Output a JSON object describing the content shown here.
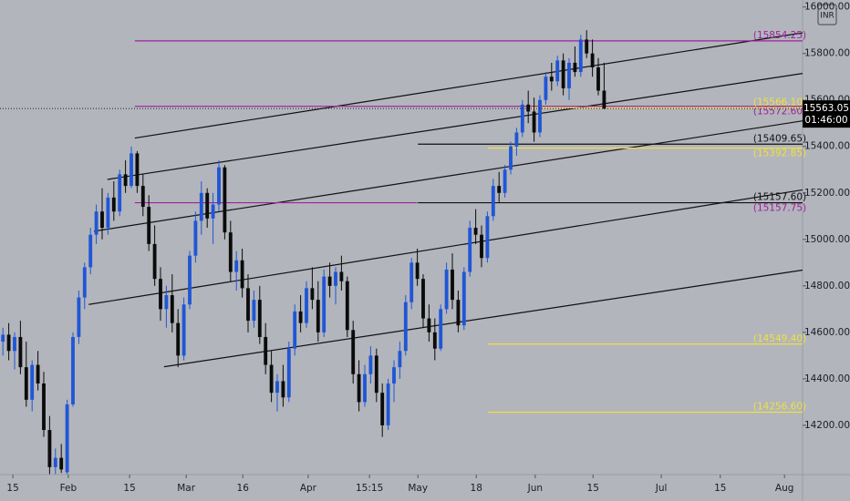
{
  "chart_data": {
    "type": "candlestick",
    "currency": "INR",
    "up_color": "#1f56d6",
    "down_color": "#0b0b0b",
    "ohlc": [
      [
        14560,
        14620,
        14500,
        14590
      ],
      [
        14590,
        14640,
        14480,
        14520
      ],
      [
        14520,
        14600,
        14440,
        14580
      ],
      [
        14580,
        14650,
        14420,
        14450
      ],
      [
        14450,
        14560,
        14280,
        14310
      ],
      [
        14310,
        14480,
        14260,
        14460
      ],
      [
        14460,
        14520,
        14350,
        14380
      ],
      [
        14380,
        14430,
        14150,
        14180
      ],
      [
        14180,
        14240,
        13990,
        14020
      ],
      [
        14020,
        14100,
        13990,
        14060
      ],
      [
        14060,
        14120,
        13995,
        14010
      ],
      [
        13998,
        14310,
        13990,
        14290
      ],
      [
        14290,
        14600,
        14280,
        14580
      ],
      [
        14580,
        14780,
        14550,
        14750
      ],
      [
        14750,
        14900,
        14700,
        14880
      ],
      [
        14880,
        15050,
        14850,
        15020
      ],
      [
        15020,
        15150,
        14980,
        15120
      ],
      [
        15120,
        15220,
        15000,
        15050
      ],
      [
        15050,
        15200,
        15020,
        15180
      ],
      [
        15180,
        15250,
        15080,
        15120
      ],
      [
        15120,
        15300,
        15100,
        15280
      ],
      [
        15280,
        15340,
        15200,
        15230
      ],
      [
        15230,
        15400,
        15220,
        15370
      ],
      [
        15370,
        15380,
        15200,
        15230
      ],
      [
        15230,
        15280,
        15100,
        15140
      ],
      [
        15140,
        15190,
        14950,
        14980
      ],
      [
        14980,
        15060,
        14800,
        14830
      ],
      [
        14830,
        14880,
        14650,
        14700
      ],
      [
        14700,
        14800,
        14620,
        14760
      ],
      [
        14760,
        14850,
        14600,
        14640
      ],
      [
        14640,
        14700,
        14450,
        14500
      ],
      [
        14500,
        14750,
        14480,
        14720
      ],
      [
        14720,
        14950,
        14700,
        14930
      ],
      [
        14930,
        15120,
        14900,
        15080
      ],
      [
        15080,
        15250,
        15020,
        15200
      ],
      [
        15200,
        15220,
        15050,
        15090
      ],
      [
        15090,
        15200,
        14980,
        15150
      ],
      [
        15150,
        15340,
        15120,
        15310
      ],
      [
        15310,
        15320,
        15000,
        15030
      ],
      [
        15030,
        15080,
        14820,
        14860
      ],
      [
        14860,
        14950,
        14780,
        14910
      ],
      [
        14910,
        14960,
        14750,
        14790
      ],
      [
        14790,
        14850,
        14600,
        14650
      ],
      [
        14650,
        14780,
        14620,
        14740
      ],
      [
        14740,
        14800,
        14550,
        14580
      ],
      [
        14580,
        14640,
        14420,
        14460
      ],
      [
        14460,
        14520,
        14300,
        14340
      ],
      [
        14340,
        14420,
        14260,
        14390
      ],
      [
        14390,
        14460,
        14280,
        14320
      ],
      [
        14320,
        14560,
        14300,
        14530
      ],
      [
        14530,
        14720,
        14500,
        14690
      ],
      [
        14690,
        14760,
        14600,
        14640
      ],
      [
        14640,
        14820,
        14620,
        14790
      ],
      [
        14790,
        14880,
        14700,
        14740
      ],
      [
        14740,
        14820,
        14560,
        14600
      ],
      [
        14600,
        14870,
        14580,
        14840
      ],
      [
        14840,
        14900,
        14750,
        14800
      ],
      [
        14800,
        14880,
        14720,
        14860
      ],
      [
        14860,
        14930,
        14780,
        14820
      ],
      [
        14820,
        14840,
        14580,
        14610
      ],
      [
        14610,
        14650,
        14380,
        14420
      ],
      [
        14420,
        14480,
        14260,
        14300
      ],
      [
        14300,
        14460,
        14280,
        14420
      ],
      [
        14420,
        14540,
        14380,
        14500
      ],
      [
        14500,
        14530,
        14300,
        14340
      ],
      [
        14340,
        14380,
        14150,
        14200
      ],
      [
        14200,
        14400,
        14180,
        14380
      ],
      [
        14380,
        14480,
        14300,
        14450
      ],
      [
        14450,
        14560,
        14400,
        14520
      ],
      [
        14520,
        14760,
        14500,
        14730
      ],
      [
        14730,
        14920,
        14700,
        14900
      ],
      [
        14900,
        14960,
        14800,
        14830
      ],
      [
        14830,
        14850,
        14620,
        14660
      ],
      [
        14660,
        14720,
        14560,
        14600
      ],
      [
        14600,
        14660,
        14480,
        14530
      ],
      [
        14530,
        14720,
        14520,
        14700
      ],
      [
        14700,
        14900,
        14680,
        14870
      ],
      [
        14870,
        14940,
        14700,
        14740
      ],
      [
        14740,
        14780,
        14600,
        14630
      ],
      [
        14630,
        14880,
        14610,
        14860
      ],
      [
        14860,
        15080,
        14840,
        15050
      ],
      [
        15050,
        15130,
        14980,
        15020
      ],
      [
        15020,
        15060,
        14880,
        14920
      ],
      [
        14920,
        15120,
        14900,
        15100
      ],
      [
        15100,
        15260,
        15080,
        15230
      ],
      [
        15230,
        15290,
        15160,
        15200
      ],
      [
        15200,
        15320,
        15180,
        15300
      ],
      [
        15300,
        15420,
        15280,
        15400
      ],
      [
        15400,
        15480,
        15360,
        15460
      ],
      [
        15460,
        15600,
        15440,
        15580
      ],
      [
        15580,
        15640,
        15500,
        15550
      ],
      [
        15550,
        15610,
        15420,
        15460
      ],
      [
        15460,
        15620,
        15440,
        15600
      ],
      [
        15600,
        15720,
        15580,
        15700
      ],
      [
        15700,
        15760,
        15640,
        15680
      ],
      [
        15680,
        15790,
        15660,
        15770
      ],
      [
        15770,
        15800,
        15620,
        15650
      ],
      [
        15650,
        15780,
        15600,
        15760
      ],
      [
        15760,
        15830,
        15700,
        15720
      ],
      [
        15720,
        15880,
        15700,
        15860
      ],
      [
        15860,
        15900,
        15780,
        15800
      ],
      [
        15800,
        15860,
        15700,
        15740
      ],
      [
        15740,
        15780,
        15620,
        15640
      ],
      [
        15640,
        15760,
        15560,
        15563.05
      ]
    ],
    "xlim": [
      -0.5,
      137
    ],
    "xticks": [
      {
        "value": 1.7,
        "label": "15"
      },
      {
        "value": 11.2,
        "label": "Feb"
      },
      {
        "value": 21.7,
        "label": "15"
      },
      {
        "value": 31.4,
        "label": "Mar"
      },
      {
        "value": 41.1,
        "label": "16"
      },
      {
        "value": 52.3,
        "label": "Apr"
      },
      {
        "value": 62.8,
        "label": "15:15"
      },
      {
        "value": 71.1,
        "label": "May"
      },
      {
        "value": 81.1,
        "label": "18"
      },
      {
        "value": 91.2,
        "label": "Jun"
      },
      {
        "value": 101.1,
        "label": "15"
      },
      {
        "value": 112.8,
        "label": "Jul"
      },
      {
        "value": 122.9,
        "label": "15"
      },
      {
        "value": 133.9,
        "label": "Aug"
      }
    ],
    "ylim": [
      13988,
      16030
    ],
    "yticks": [
      {
        "value": 14200,
        "label": "14200.00"
      },
      {
        "value": 14400,
        "label": "14400.00"
      },
      {
        "value": 14600,
        "label": "14600.00"
      },
      {
        "value": 14800,
        "label": "14800.00"
      },
      {
        "value": 15000,
        "label": "15000.00"
      },
      {
        "value": 15200,
        "label": "15200.00"
      },
      {
        "value": 15400,
        "label": "15400.00"
      },
      {
        "value": 15600,
        "label": "15600.00"
      },
      {
        "value": 15800,
        "label": "15800.00"
      },
      {
        "value": 16000,
        "label": "16000.00"
      }
    ],
    "levels": [
      {
        "value": 15854.25,
        "label": "(15854.25)",
        "color": "#a020a0",
        "start": 22.6
      },
      {
        "value": 15572.6,
        "label": "(15572.60)",
        "color": "#a020a0",
        "start": 22.6
      },
      {
        "value": 15157.75,
        "label": "(15157.75)",
        "color": "#a020a0",
        "start": 22.6,
        "end": 71
      },
      {
        "value": 15566.1,
        "label": "(15566.10)",
        "color": "#f0e040",
        "start": 90.5
      },
      {
        "value": 15392.85,
        "label": "(15392.85)",
        "color": "#f0e040",
        "start": 83.1
      },
      {
        "value": 14549.4,
        "label": "(14549.40)",
        "color": "#f0e040",
        "start": 83.1
      },
      {
        "value": 14256.6,
        "label": "(14256.60)",
        "color": "#f0e040",
        "start": 83.1
      },
      {
        "value": 15409.65,
        "label": "(15409.65)",
        "color": "#111111",
        "start": 71.1
      },
      {
        "value": 15157.6,
        "label": "(15157.60)",
        "color": "#111111",
        "start": 71.1
      }
    ],
    "trendlines": [
      {
        "x": [
          22.6,
          137
        ],
        "y": [
          15436,
          15889
        ]
      },
      {
        "x": [
          17.9,
          137
        ],
        "y": [
          15258,
          15714
        ]
      },
      {
        "x": [
          15.6,
          137
        ],
        "y": [
          15035,
          15510
        ]
      },
      {
        "x": [
          14.7,
          137
        ],
        "y": [
          14720,
          15213
        ]
      },
      {
        "x": [
          27.6,
          137
        ],
        "y": [
          14452,
          14868
        ]
      }
    ],
    "current_price": 15563.05,
    "countdown": "01:46:00"
  }
}
